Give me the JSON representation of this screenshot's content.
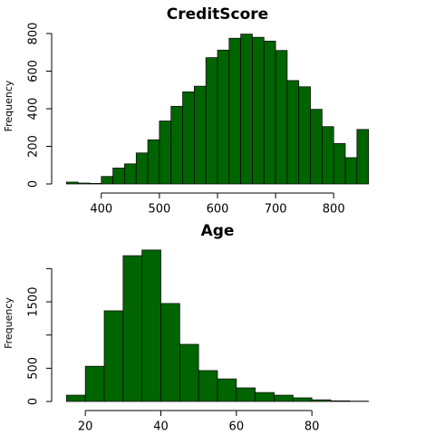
{
  "chart_data": [
    {
      "type": "histogram",
      "title": "CreditScore",
      "y_label": "Frequency",
      "color": "#006400",
      "bins": [
        340,
        360,
        380,
        400,
        420,
        440,
        460,
        480,
        500,
        520,
        540,
        560,
        580,
        600,
        620,
        640,
        660,
        680,
        700,
        720,
        740,
        760,
        780,
        800,
        820,
        840,
        860
      ],
      "values": [
        10,
        5,
        3,
        40,
        85,
        107,
        165,
        235,
        335,
        413,
        490,
        520,
        672,
        712,
        775,
        797,
        780,
        760,
        710,
        550,
        517,
        397,
        305,
        215,
        140,
        290
      ],
      "xlim": [
        319.2,
        880.8
      ],
      "xticks": [
        400,
        500,
        600,
        700,
        800
      ],
      "ylim": [
        0,
        829
      ],
      "yticks": [
        0,
        200,
        400,
        600,
        800
      ]
    },
    {
      "type": "histogram",
      "title": "Age",
      "y_label": "Frequency",
      "color": "#006400",
      "bins": [
        15,
        20,
        25,
        30,
        35,
        40,
        45,
        50,
        55,
        60,
        65,
        70,
        75,
        80,
        85,
        90,
        95
      ],
      "values": [
        95,
        530,
        1365,
        2195,
        2280,
        1475,
        860,
        465,
        340,
        205,
        135,
        95,
        55,
        25,
        10,
        5
      ],
      "xlim": [
        11.8,
        98.2
      ],
      "xticks": [
        20,
        40,
        60,
        80
      ],
      "ylim": [
        0,
        2360
      ],
      "yticks": [
        0,
        500,
        {
          "value": 1000,
          "label": null
        },
        1500,
        {
          "value": 2000,
          "label": null
        }
      ]
    }
  ]
}
